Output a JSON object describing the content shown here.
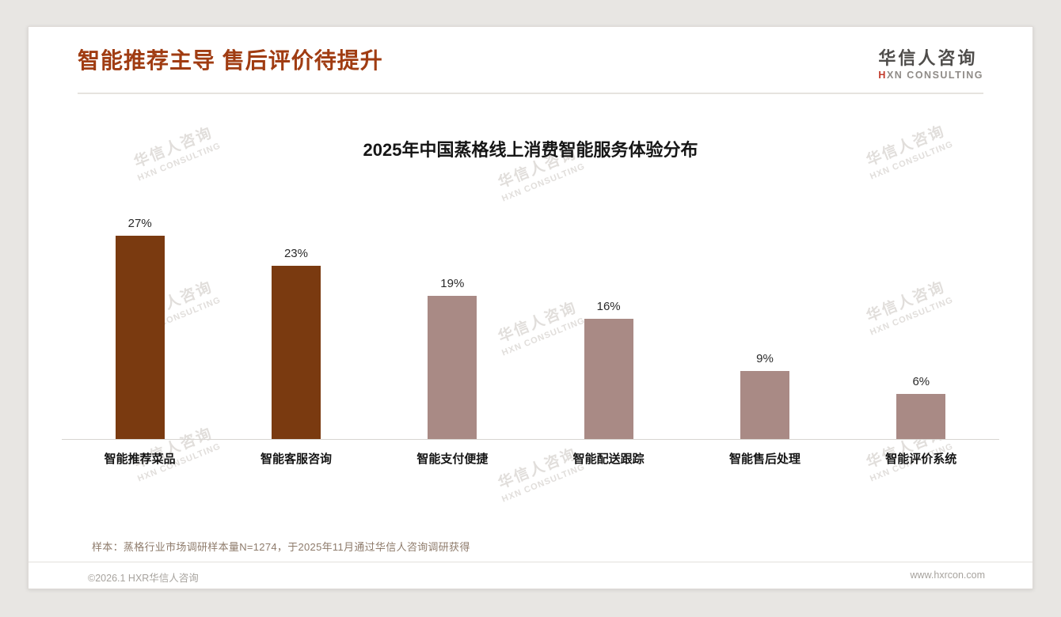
{
  "page": {
    "header_title": "智能推荐主导 售后评价待提升",
    "logo": {
      "cn": "华信人咨询",
      "en_accent": "H",
      "en_rest": "XN CONSULTING"
    },
    "watermark": {
      "cn": "华信人咨询",
      "en": "HXN CONSULTING"
    },
    "sample_note": "样本：蒸格行业市场调研样本量N=1274，于2025年11月通过华信人咨询调研获得",
    "footer_left": "©2026.1 HXR华信人咨询",
    "footer_right": "www.hxrcon.com"
  },
  "chart_data": {
    "type": "bar",
    "title": "2025年中国蒸格线上消费智能服务体验分布",
    "categories": [
      "智能推荐菜品",
      "智能客服咨询",
      "智能支付便捷",
      "智能配送跟踪",
      "智能售后处理",
      "智能评价系统"
    ],
    "values": [
      27,
      23,
      19,
      16,
      9,
      6
    ],
    "value_labels": [
      "27%",
      "23%",
      "19%",
      "16%",
      "9%",
      "6%"
    ],
    "bar_colors": [
      "#7a3a10",
      "#7a3a10",
      "#a98a85",
      "#a98a85",
      "#a98a85",
      "#a98a85"
    ],
    "xlabel": "",
    "ylabel": "",
    "ylim": [
      0,
      30
    ],
    "grid": false,
    "legend": false
  },
  "colors": {
    "accent_title": "#a03c12",
    "bar_dark": "#7a3a10",
    "bar_light": "#a98a85",
    "logo_accent": "#c23a2b",
    "watermark": "#c9c4bf"
  }
}
